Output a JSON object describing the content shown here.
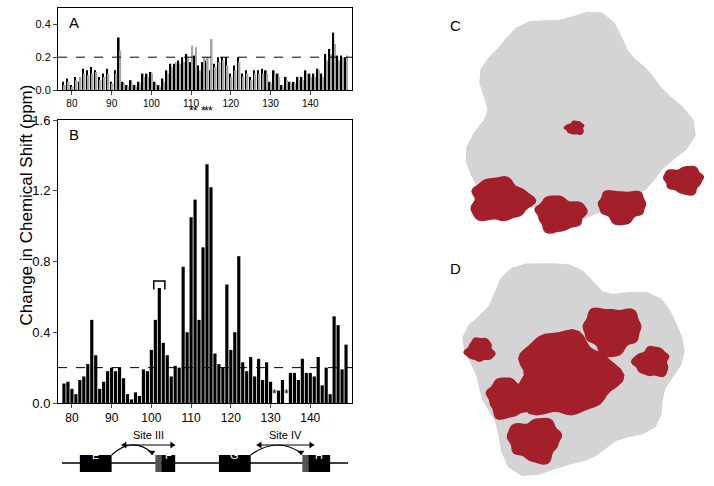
{
  "y_title": "Change in Chemical Shift (ppm)",
  "chart_data": [
    {
      "type": "bar",
      "panel": "A",
      "x": [
        78,
        79,
        80,
        81,
        82,
        83,
        84,
        85,
        86,
        87,
        88,
        89,
        90,
        91,
        92,
        93,
        94,
        95,
        96,
        97,
        98,
        99,
        100,
        101,
        102,
        103,
        104,
        105,
        106,
        107,
        108,
        109,
        110,
        111,
        112,
        113,
        114,
        115,
        116,
        117,
        118,
        119,
        120,
        121,
        122,
        123,
        124,
        125,
        126,
        127,
        128,
        129,
        130,
        131,
        132,
        133,
        134,
        135,
        136,
        137,
        138,
        139,
        140,
        141,
        142,
        143,
        144,
        145,
        146,
        147,
        148,
        149
      ],
      "series": [
        {
          "color": "#000000",
          "values": [
            0.05,
            0.07,
            0.03,
            0.08,
            0.05,
            0.13,
            0.12,
            0.14,
            0.12,
            0.08,
            0.1,
            0.13,
            0.05,
            0.12,
            0.32,
            0.05,
            0.03,
            0.06,
            0.03,
            0.05,
            0.1,
            0.1,
            0.11,
            0.05,
            0.03,
            0.07,
            0.12,
            0.16,
            0.16,
            0.18,
            0.2,
            0.22,
            0.17,
            0.21,
            0.15,
            0.17,
            0.18,
            0.12,
            0.16,
            0.2,
            0.2,
            0.2,
            0.1,
            0.15,
            0.2,
            0.1,
            0.12,
            0.08,
            0.12,
            0.12,
            0.13,
            0.12,
            0.05,
            0.12,
            0.1,
            0.03,
            0.08,
            0.05,
            0.05,
            0.08,
            0.08,
            0.12,
            0.1,
            0.1,
            0.13,
            0.1,
            0.22,
            0.25,
            0.35,
            0.21,
            0.21,
            0.2
          ]
        },
        {
          "color": "#a6a6a6",
          "values": [
            0.03,
            0.05,
            0.02,
            0.06,
            0.08,
            0.1,
            0.09,
            0.1,
            0.11,
            0.06,
            0.08,
            0.1,
            0.04,
            0.1,
            0.24,
            0.04,
            0.02,
            0.04,
            0.02,
            0.04,
            0.08,
            0.08,
            0.1,
            0.04,
            0.02,
            0.05,
            0.1,
            0.14,
            0.17,
            0.16,
            0.17,
            0.2,
            0.27,
            0.26,
            0.12,
            0.2,
            0.2,
            0.31,
            0.14,
            0.17,
            0.18,
            0.15,
            0.08,
            0.12,
            0.17,
            0.08,
            0.1,
            0.06,
            0.1,
            0.1,
            0.1,
            0.1,
            0.04,
            0.1,
            0.08,
            0.02,
            0.06,
            0.04,
            0.04,
            0.06,
            0.06,
            0.1,
            0.08,
            0.08,
            0.12,
            0.08,
            0.18,
            0.22,
            0.28,
            0.18,
            0.2,
            0.21
          ]
        }
      ],
      "xlim": [
        76.5,
        150.5
      ],
      "xticks": [
        80,
        90,
        100,
        110,
        120,
        130,
        140
      ],
      "ylim": [
        0,
        0.5
      ],
      "yticks": [
        {
          "value": 0,
          "label": "0.0"
        },
        0.2,
        0.4
      ],
      "reference_line": 0.2,
      "annotations": [
        {
          "x": 110,
          "text": "*"
        },
        {
          "x": 111,
          "text": "*"
        },
        {
          "x": 113,
          "text": "*"
        },
        {
          "x": 114,
          "text": "*"
        },
        {
          "x": 115,
          "text": "*"
        }
      ]
    },
    {
      "type": "bar",
      "panel": "B",
      "x": [
        78,
        79,
        80,
        81,
        82,
        83,
        84,
        85,
        86,
        87,
        88,
        89,
        90,
        91,
        92,
        93,
        94,
        95,
        96,
        97,
        98,
        99,
        100,
        101,
        102,
        103,
        104,
        105,
        106,
        107,
        108,
        109,
        110,
        111,
        112,
        113,
        114,
        115,
        116,
        117,
        118,
        119,
        120,
        121,
        122,
        123,
        124,
        125,
        126,
        127,
        128,
        129,
        130,
        131,
        132,
        133,
        134,
        135,
        136,
        137,
        138,
        139,
        140,
        141,
        142,
        143,
        144,
        145,
        146,
        147,
        148,
        149
      ],
      "series": [
        {
          "color": "#000000",
          "values": [
            0.11,
            0.12,
            0.08,
            0.05,
            0.13,
            0.15,
            0.22,
            0.47,
            0.27,
            0.08,
            0.12,
            0.18,
            0.2,
            0.18,
            0.2,
            0.14,
            0.05,
            0.02,
            0.06,
            0.04,
            0.19,
            0.18,
            0.3,
            0.47,
            0.65,
            0.34,
            0.27,
            0.15,
            0.21,
            0.2,
            0.77,
            0.4,
            1.05,
            1.15,
            0.47,
            0.88,
            1.35,
            1.22,
            0.28,
            0.22,
            0.2,
            0.67,
            0.3,
            0.4,
            0.83,
            0.23,
            0.18,
            0.26,
            0.15,
            0.25,
            0.13,
            0.23,
            0.12,
            0,
            0.07,
            0.13,
            0,
            0.17,
            0.17,
            0.13,
            0.25,
            0.17,
            0.17,
            0.15,
            0.26,
            0.1,
            0.2,
            0.05,
            0.49,
            0.44,
            0.19,
            0.33
          ]
        }
      ],
      "xlim": [
        76.5,
        150.5
      ],
      "xticks": [
        80,
        90,
        100,
        110,
        120,
        130,
        140
      ],
      "ylim": [
        0,
        1.6
      ],
      "yticks": [
        {
          "value": 0,
          "label": "0.0"
        },
        0.4,
        0.8,
        1.2,
        1.6
      ],
      "reference_line": 0.2,
      "bracket": {
        "x": [
          100.6,
          103.4
        ],
        "y": 0.69
      },
      "annotations": [
        {
          "x": 131,
          "text": "*"
        },
        {
          "x": 134,
          "text": "*"
        }
      ]
    }
  ],
  "diagram": {
    "helices": [
      {
        "label": "E",
        "start": 82,
        "end": 90
      },
      {
        "label": "F",
        "start": 101,
        "end": 106,
        "lead": 102.5
      },
      {
        "label": "G",
        "start": 117,
        "end": 125
      },
      {
        "label": "H",
        "start": 138,
        "end": 145,
        "lead": 139.5
      }
    ],
    "loops": [
      {
        "start": 90,
        "end": 100.5
      },
      {
        "start": 125,
        "end": 138
      }
    ],
    "sites": [
      {
        "label": "Site III",
        "start": 92.5,
        "end": 106
      },
      {
        "label": "Site IV",
        "start": 126.5,
        "end": 141
      }
    ]
  },
  "images": [
    {
      "label": "C"
    },
    {
      "label": "D"
    }
  ]
}
